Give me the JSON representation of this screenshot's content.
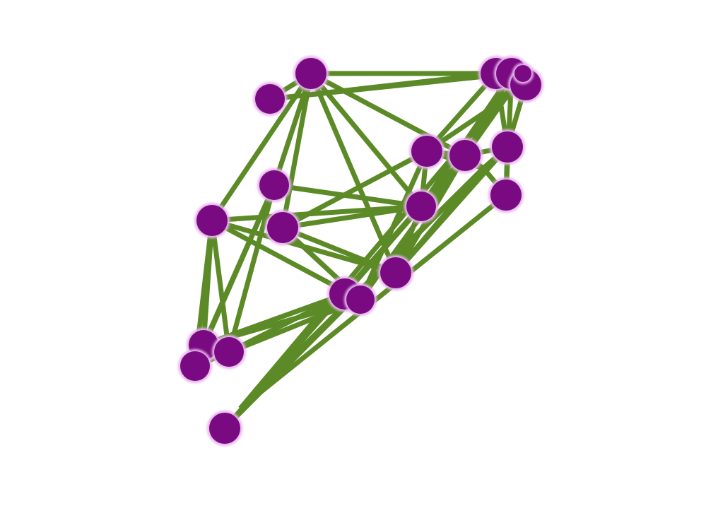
{
  "graph": {
    "colors": {
      "background": "#ffffff",
      "node_fill": "#7a0a82",
      "node_halo": "#e6b6ec",
      "edge": "#5b8a26"
    },
    "nodes": [
      {
        "id": "n1"
      },
      {
        "id": "n2"
      },
      {
        "id": "n3"
      },
      {
        "id": "n4"
      },
      {
        "id": "n5"
      },
      {
        "id": "n6"
      },
      {
        "id": "n7"
      },
      {
        "id": "n8"
      },
      {
        "id": "n9"
      },
      {
        "id": "n10"
      },
      {
        "id": "n11"
      },
      {
        "id": "n12"
      },
      {
        "id": "n13"
      },
      {
        "id": "n14"
      },
      {
        "id": "n15"
      },
      {
        "id": "n16"
      },
      {
        "id": "n17"
      },
      {
        "id": "n18"
      },
      {
        "id": "n19"
      },
      {
        "id": "n20"
      },
      {
        "id": "n21"
      },
      {
        "id": "n22"
      },
      {
        "id": "n23"
      }
    ],
    "edges": [
      [
        "n1",
        "n3"
      ],
      [
        "n1",
        "n4"
      ],
      [
        "n1",
        "n5"
      ],
      [
        "n1",
        "n6"
      ],
      [
        "n1",
        "n9"
      ],
      [
        "n1",
        "n11"
      ],
      [
        "n1",
        "n16"
      ],
      [
        "n1",
        "n2"
      ],
      [
        "n2",
        "n6"
      ],
      [
        "n2",
        "n8"
      ],
      [
        "n3",
        "n13"
      ],
      [
        "n3",
        "n12"
      ],
      [
        "n3",
        "n15"
      ],
      [
        "n3",
        "n9"
      ],
      [
        "n3",
        "n11"
      ],
      [
        "n3",
        "n14"
      ],
      [
        "n4",
        "n9"
      ],
      [
        "n4",
        "n14"
      ],
      [
        "n5",
        "n9"
      ],
      [
        "n5",
        "n11"
      ],
      [
        "n5",
        "n7"
      ],
      [
        "n5",
        "n12"
      ],
      [
        "n6",
        "n7"
      ],
      [
        "n6",
        "n17"
      ],
      [
        "n6",
        "n21"
      ],
      [
        "n7",
        "n9"
      ],
      [
        "n7",
        "n16"
      ],
      [
        "n7",
        "n12"
      ],
      [
        "n7",
        "n22"
      ],
      [
        "n7",
        "n18"
      ],
      [
        "n8",
        "n9"
      ],
      [
        "n8",
        "n16"
      ],
      [
        "n8",
        "n20"
      ],
      [
        "n8",
        "n21"
      ],
      [
        "n9",
        "n10"
      ],
      [
        "n9",
        "n16"
      ],
      [
        "n9",
        "n11"
      ],
      [
        "n10",
        "n16"
      ],
      [
        "n10",
        "n12"
      ],
      [
        "n10",
        "n14"
      ],
      [
        "n10",
        "n13"
      ],
      [
        "n11",
        "n16"
      ],
      [
        "n11",
        "n17"
      ],
      [
        "n11",
        "n22"
      ],
      [
        "n12",
        "n16"
      ],
      [
        "n12",
        "n13"
      ],
      [
        "n12",
        "n15"
      ],
      [
        "n13",
        "n10"
      ],
      [
        "n13",
        "n4"
      ],
      [
        "n14",
        "n15"
      ],
      [
        "n15",
        "n4"
      ],
      [
        "n16",
        "n17"
      ],
      [
        "n16",
        "n22"
      ],
      [
        "n16",
        "n21"
      ],
      [
        "n17",
        "n22"
      ],
      [
        "n17",
        "n20"
      ],
      [
        "n18",
        "n17"
      ],
      [
        "n18",
        "n21"
      ],
      [
        "n19",
        "n16"
      ],
      [
        "n19",
        "n22"
      ],
      [
        "n20",
        "n22"
      ],
      [
        "n22",
        "n23"
      ],
      [
        "n21",
        "n23"
      ],
      [
        "n20",
        "n23"
      ],
      [
        "n12",
        "n5"
      ]
    ]
  }
}
